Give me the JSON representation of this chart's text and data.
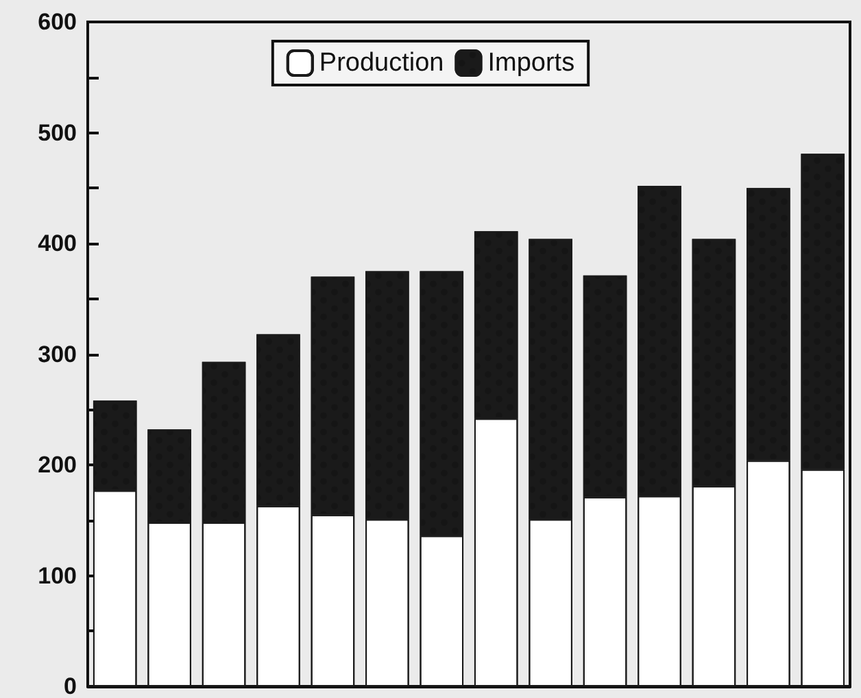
{
  "chart_data": {
    "type": "bar",
    "stacked": true,
    "categories": [
      null,
      null,
      null,
      null,
      null,
      null,
      null,
      null,
      null,
      null,
      null,
      null,
      null,
      null
    ],
    "series": [
      {
        "name": "Production",
        "color": "#ffffff",
        "values": [
          177,
          148,
          148,
          163,
          155,
          151,
          136,
          242,
          151,
          171,
          172,
          181,
          204,
          196
        ]
      },
      {
        "name": "Imports",
        "color": "#1a1a1a",
        "values": [
          81,
          84,
          145,
          155,
          215,
          224,
          239,
          169,
          253,
          200,
          280,
          223,
          246,
          285
        ]
      }
    ],
    "ylim": [
      0,
      600
    ],
    "yticks": [
      0,
      {
        "value": 50,
        "label": null
      },
      100,
      {
        "value": 150,
        "label": null
      },
      200,
      {
        "value": 250,
        "label": null
      },
      300,
      {
        "value": 350,
        "label": null
      },
      400,
      {
        "value": 450,
        "label": null
      },
      500,
      {
        "value": 550,
        "label": null
      },
      600
    ],
    "legend": "top",
    "grid": false
  }
}
